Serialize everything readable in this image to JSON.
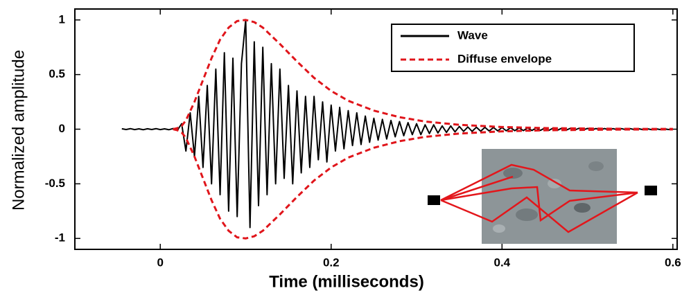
{
  "chart_data": {
    "type": "line",
    "xlabel": "Time (milliseconds)",
    "ylabel": "Normalized amplitude",
    "xlim": [
      -0.1,
      0.605
    ],
    "ylim": [
      -1.1,
      1.1
    ],
    "xticks": [
      0,
      0.2,
      0.4,
      0.6
    ],
    "yticks": [
      1,
      0.5,
      0,
      -0.5,
      -1
    ],
    "legend": "upper right",
    "series": [
      {
        "name": "Wave",
        "color": "#000000",
        "dash": "solid",
        "x": [
          -0.045,
          -0.04,
          -0.035,
          -0.03,
          -0.025,
          -0.02,
          -0.015,
          -0.01,
          -0.005,
          0,
          0.005,
          0.01,
          0.015,
          0.02,
          0.025,
          0.03,
          0.035,
          0.04,
          0.045,
          0.05,
          0.055,
          0.06,
          0.065,
          0.07,
          0.075,
          0.08,
          0.085,
          0.09,
          0.095,
          0.1,
          0.105,
          0.11,
          0.115,
          0.12,
          0.125,
          0.13,
          0.135,
          0.14,
          0.145,
          0.15,
          0.155,
          0.16,
          0.165,
          0.17,
          0.175,
          0.18,
          0.185,
          0.19,
          0.195,
          0.2,
          0.205,
          0.21,
          0.215,
          0.22,
          0.225,
          0.23,
          0.235,
          0.24,
          0.245,
          0.25,
          0.255,
          0.26,
          0.265,
          0.27,
          0.275,
          0.28,
          0.285,
          0.29,
          0.295,
          0.3,
          0.305,
          0.31,
          0.315,
          0.32,
          0.325,
          0.33,
          0.335,
          0.34,
          0.345,
          0.35,
          0.355,
          0.36,
          0.365,
          0.37,
          0.375,
          0.38,
          0.385,
          0.39,
          0.395,
          0.4,
          0.405,
          0.41,
          0.415,
          0.42,
          0.425,
          0.43,
          0.435,
          0.44,
          0.445,
          0.45,
          0.455,
          0.46,
          0.465,
          0.47,
          0.475,
          0.48,
          0.485,
          0.49,
          0.495,
          0.5,
          0.505,
          0.51,
          0.515,
          0.52,
          0.525,
          0.53,
          0.535,
          0.54,
          0.545,
          0.55,
          0.555,
          0.56,
          0.565,
          0.57,
          0.575,
          0.58,
          0.585,
          0.59,
          0.595,
          0.6
        ],
        "values": [
          0.004,
          -0.003,
          0.005,
          -0.004,
          0.003,
          -0.005,
          0.004,
          -0.003,
          0.005,
          -0.004,
          0.003,
          -0.005,
          0.006,
          -0.01,
          0.05,
          -0.2,
          0.15,
          -0.25,
          0.3,
          -0.35,
          0.4,
          -0.5,
          0.55,
          -0.6,
          0.7,
          -0.75,
          0.65,
          -0.8,
          0.6,
          1.0,
          -0.9,
          0.8,
          -0.7,
          0.75,
          -0.6,
          0.6,
          -0.5,
          0.55,
          -0.45,
          0.4,
          -0.5,
          0.35,
          -0.4,
          0.3,
          -0.35,
          0.3,
          -0.28,
          0.25,
          -0.3,
          0.22,
          -0.2,
          0.2,
          -0.18,
          0.17,
          -0.15,
          0.15,
          -0.14,
          0.12,
          -0.12,
          0.1,
          -0.1,
          0.09,
          -0.09,
          0.08,
          -0.07,
          0.07,
          -0.06,
          0.06,
          -0.05,
          0.05,
          -0.05,
          0.04,
          -0.04,
          0.04,
          -0.035,
          0.03,
          -0.03,
          0.03,
          -0.025,
          0.025,
          -0.02,
          0.02,
          -0.02,
          0.018,
          -0.018,
          0.017,
          -0.017,
          0.016,
          -0.016,
          0.015,
          -0.015,
          0.014,
          -0.014,
          0.013,
          -0.013,
          0.012,
          -0.012,
          0.011,
          -0.011,
          0.01,
          -0.01,
          0.01,
          -0.009,
          0.009,
          -0.009,
          0.008,
          -0.008,
          0.008,
          -0.007,
          0.007,
          -0.007,
          0.006,
          -0.006,
          0.006,
          -0.006,
          0.005,
          -0.005,
          0.005,
          -0.005,
          0.005,
          -0.004,
          0.004,
          -0.004,
          0.004,
          -0.004,
          0.004,
          -0.003,
          0.003,
          -0.003,
          0.003
        ]
      },
      {
        "name": "Diffuse envelope",
        "color": "#e0151b",
        "dash": "dashed",
        "x": [
          0.015,
          0.02,
          0.025,
          0.03,
          0.04,
          0.05,
          0.06,
          0.07,
          0.08,
          0.09,
          0.1,
          0.11,
          0.12,
          0.14,
          0.16,
          0.18,
          0.2,
          0.22,
          0.25,
          0.28,
          0.31,
          0.35,
          0.4,
          0.45,
          0.5,
          0.55,
          0.6
        ],
        "values": [
          0,
          0.01,
          0.03,
          0.08,
          0.25,
          0.45,
          0.65,
          0.82,
          0.93,
          0.99,
          1.0,
          0.98,
          0.93,
          0.78,
          0.62,
          0.47,
          0.35,
          0.26,
          0.17,
          0.11,
          0.07,
          0.04,
          0.02,
          0.01,
          0.006,
          0.003,
          0.002
        ],
        "lower": [
          0,
          -0.01,
          -0.03,
          -0.08,
          -0.25,
          -0.45,
          -0.65,
          -0.82,
          -0.93,
          -0.99,
          -1.0,
          -0.98,
          -0.93,
          -0.78,
          -0.62,
          -0.47,
          -0.35,
          -0.26,
          -0.17,
          -0.11,
          -0.07,
          -0.04,
          -0.02,
          -0.01,
          -0.006,
          -0.003,
          -0.002
        ]
      }
    ]
  }
}
